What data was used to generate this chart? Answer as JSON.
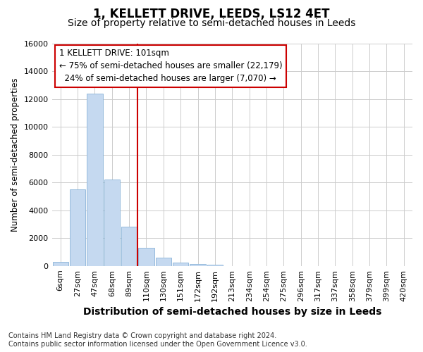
{
  "title": "1, KELLETT DRIVE, LEEDS, LS12 4ET",
  "subtitle": "Size of property relative to semi-detached houses in Leeds",
  "xlabel": "Distribution of semi-detached houses by size in Leeds",
  "ylabel": "Number of semi-detached properties",
  "bar_labels": [
    "6sqm",
    "27sqm",
    "47sqm",
    "68sqm",
    "89sqm",
    "110sqm",
    "130sqm",
    "151sqm",
    "172sqm",
    "192sqm",
    "213sqm",
    "234sqm",
    "254sqm",
    "275sqm",
    "296sqm",
    "317sqm",
    "337sqm",
    "358sqm",
    "379sqm",
    "399sqm",
    "420sqm"
  ],
  "bar_values": [
    300,
    5500,
    12400,
    6200,
    2800,
    1300,
    600,
    250,
    150,
    100,
    0,
    0,
    0,
    0,
    0,
    0,
    0,
    0,
    0,
    0,
    0
  ],
  "bar_color": "#c5d9f0",
  "bar_edgecolor": "#8ab4d8",
  "vline_x": 4.5,
  "vline_color": "#cc0000",
  "annotation_text": "1 KELLETT DRIVE: 101sqm\n← 75% of semi-detached houses are smaller (22,179)\n  24% of semi-detached houses are larger (7,070) →",
  "annotation_box_facecolor": "#ffffff",
  "annotation_box_edgecolor": "#cc0000",
  "ylim": [
    0,
    16000
  ],
  "yticks": [
    0,
    2000,
    4000,
    6000,
    8000,
    10000,
    12000,
    14000,
    16000
  ],
  "grid_color": "#cccccc",
  "plot_bg_color": "#ffffff",
  "fig_bg_color": "#ffffff",
  "footnote_line1": "Contains HM Land Registry data © Crown copyright and database right 2024.",
  "footnote_line2": "Contains public sector information licensed under the Open Government Licence v3.0.",
  "title_fontsize": 12,
  "subtitle_fontsize": 10,
  "xlabel_fontsize": 10,
  "ylabel_fontsize": 8.5,
  "tick_fontsize": 8,
  "annot_fontsize": 8.5,
  "footnote_fontsize": 7
}
